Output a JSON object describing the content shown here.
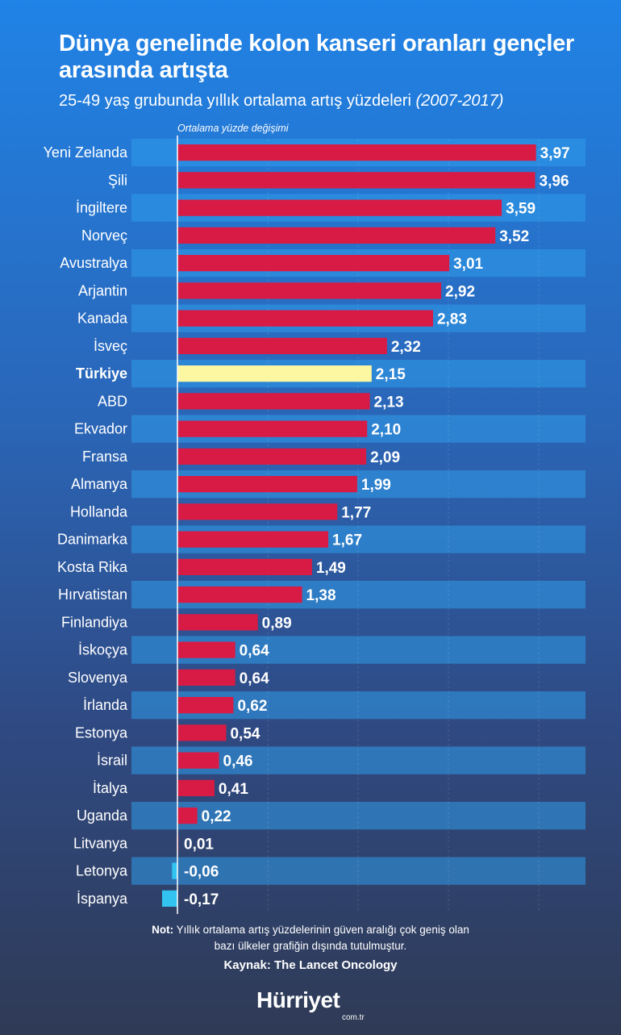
{
  "header": {
    "title": "Dünya genelinde kolon kanseri oranları gençler arasında artışta",
    "subtitle": "25-49 yaş grubunda yıllık ortalama artış yüzdeleri",
    "subtitle_period": "(2007-2017)"
  },
  "chart_data": {
    "type": "bar",
    "orientation": "horizontal",
    "axis_label": "Ortalama yüzde değişimi",
    "categories": [
      "Yeni Zelanda",
      "Şili",
      "İngiltere",
      "Norveç",
      "Avustralya",
      "Arjantin",
      "Kanada",
      "İsveç",
      "Türkiye",
      "ABD",
      "Ekvador",
      "Fransa",
      "Almanya",
      "Hollanda",
      "Danimarka",
      "Kosta Rika",
      "Hırvatistan",
      "Finlandiya",
      "İskoçya",
      "Slovenya",
      "İrlanda",
      "Estonya",
      "İsrail",
      "İtalya",
      "Uganda",
      "Litvanya",
      "Letonya",
      "İspanya"
    ],
    "values": [
      3.97,
      3.96,
      3.59,
      3.52,
      3.01,
      2.92,
      2.83,
      2.32,
      2.15,
      2.13,
      2.1,
      2.09,
      1.99,
      1.77,
      1.67,
      1.49,
      1.38,
      0.89,
      0.64,
      0.64,
      0.62,
      0.54,
      0.46,
      0.41,
      0.22,
      0.01,
      -0.06,
      -0.17
    ],
    "value_labels": [
      "3,97",
      "3,96",
      "3,59",
      "3,52",
      "3,01",
      "2,92",
      "2,83",
      "2,32",
      "2,15",
      "2,13",
      "2,10",
      "2,09",
      "1,99",
      "1,77",
      "1,67",
      "1,49",
      "1,38",
      "0,89",
      "0,64",
      "0,64",
      "0,62",
      "0,54",
      "0,46",
      "0,41",
      "0,22",
      "0,01",
      "-0,06",
      "-0,17"
    ],
    "highlight": "Türkiye",
    "xlim": [
      -0.5,
      4.6
    ],
    "colors": {
      "positive": "#d81b45",
      "negative": "#33c3f0",
      "highlight": "#fdf7a1",
      "band": "#2f9cea",
      "axis": "#ffffff"
    }
  },
  "footer": {
    "note_label": "Not:",
    "note_text_1": "Yıllık ortalama artış yüzdelerinin güven aralığı çok geniş olan",
    "note_text_2": "bazı ülkeler grafiğin dışında tutulmuştur.",
    "source": "Kaynak: The Lancet Oncology",
    "brand": "Hürriyet",
    "brand_sub": "com.tr"
  }
}
